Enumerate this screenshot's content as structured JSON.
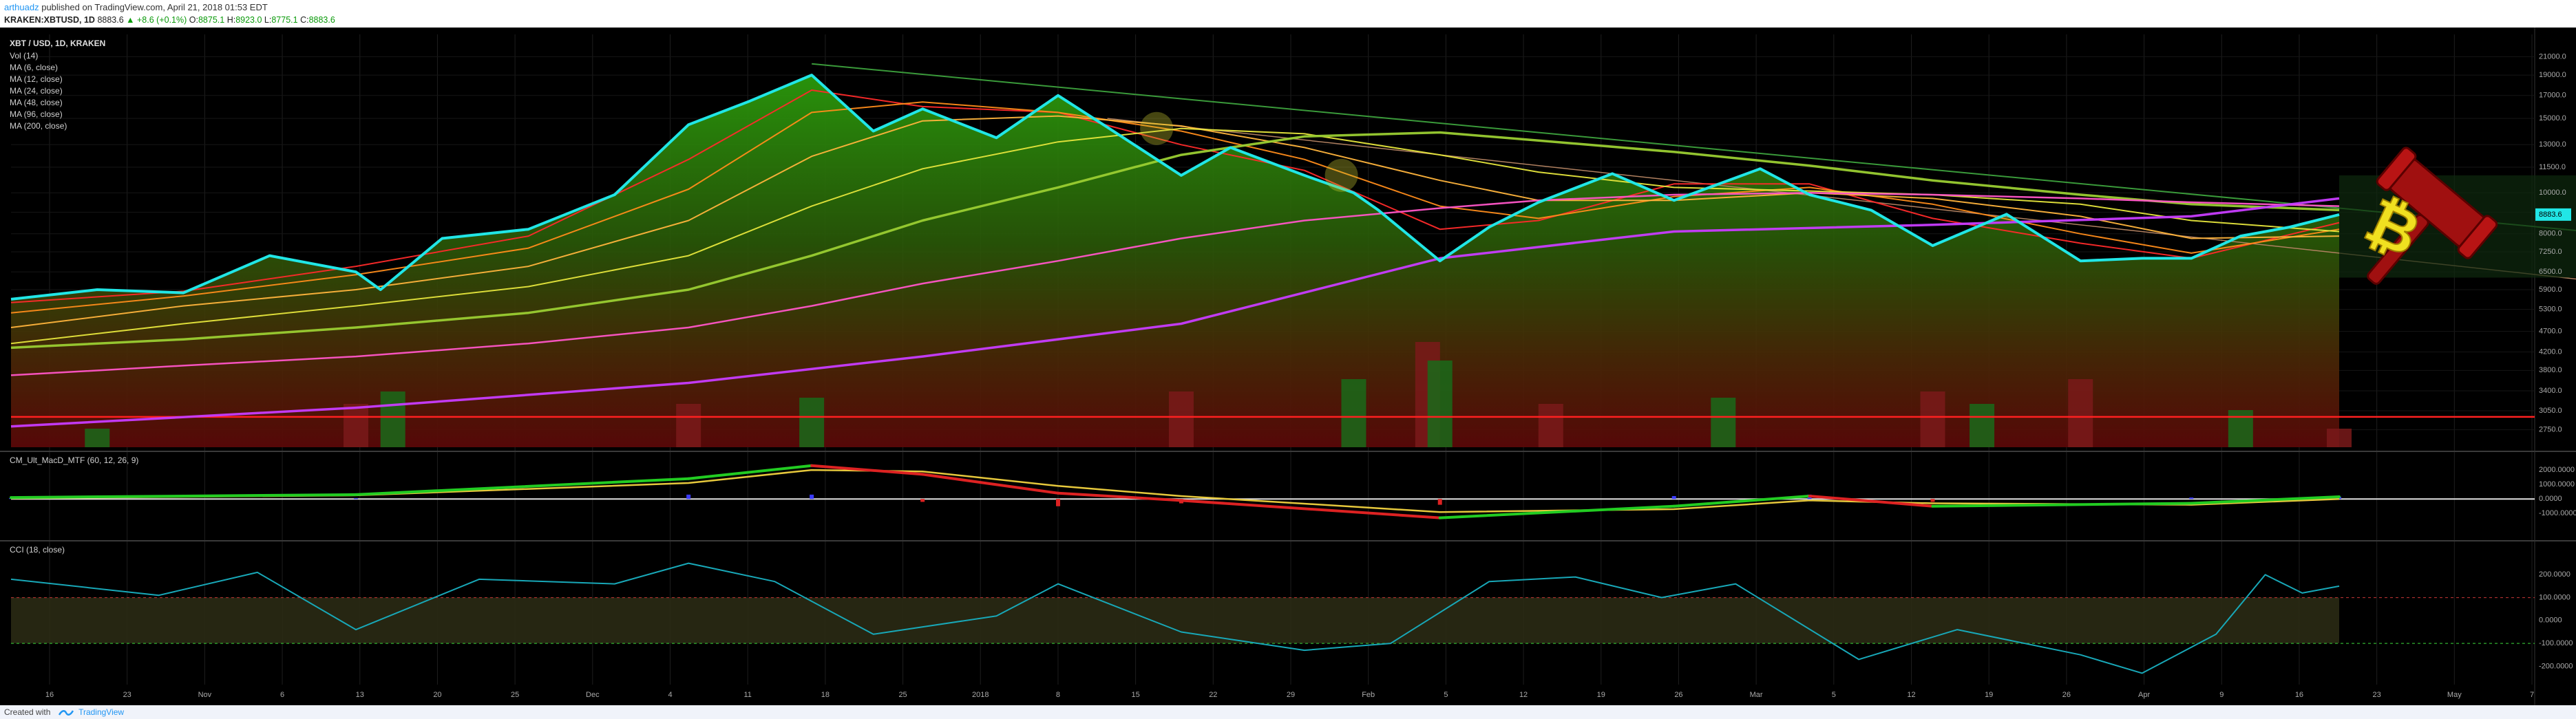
{
  "header": {
    "author": "arthuadz",
    "published_text": "published on TradingView.com, April 21, 2018 01:53 EDT",
    "symbol": "KRAKEN:XBTUSD, 1D",
    "last": "8883.6",
    "change": "▲ +8.6 (+0.1%)",
    "o_label": "O:",
    "o_value": "8875.1",
    "h_label": "H:",
    "h_value": "8923.0",
    "l_label": "L:",
    "l_value": "8775.1",
    "c_label": "C:",
    "c_value": "8883.6"
  },
  "footer": {
    "created_with": "Created with",
    "brand": "TradingView"
  },
  "colors": {
    "price_line": "#21e6e6",
    "ma6": "#ff2a2a",
    "ma12": "#ff8c1a",
    "ma24": "#ffb43c",
    "ma48": "#e6e63c",
    "ma96": "#9acd32",
    "ma200": "#ff55c8",
    "long_ma": "#c83cff",
    "hline": "#ff2020",
    "macd_up": "#22cc22",
    "macd_down": "#dd2222",
    "signal": "#e6c83c",
    "cci": "#18a8b8",
    "gavel": "#a01010",
    "bitcoin": "#f0e020",
    "price_tag_bg": "#21e6e6"
  },
  "icons": {
    "gavel": "gavel-icon",
    "bitcoin": "bitcoin-icon",
    "tradingview_logo": "tradingview-logo-icon"
  },
  "chart_data": [
    {
      "type": "line",
      "title": "XBT / USD, 1D, KRAKEN",
      "legend": [
        "Vol (14)",
        "MA (6, close)",
        "MA (12, close)",
        "MA (24, close)",
        "MA (48, close)",
        "MA (96, close)",
        "MA (200, close)"
      ],
      "legend_placement": "top-left",
      "y_scale": "log",
      "ylim": [
        2500,
        22000
      ],
      "y_ticks": [
        "21000.0",
        "19000.0",
        "17000.0",
        "15000.0",
        "13000.0",
        "11500.0",
        "10000.0",
        "9000.0",
        "8000.0",
        "7250.0",
        "6500.0",
        "5900.0",
        "5300.0",
        "4700.0",
        "4200.0",
        "3800.0",
        "3400.0",
        "3050.0",
        "2750.0"
      ],
      "last_price_label": "8883.6",
      "x_ticks": [
        "16",
        "23",
        "Nov",
        "6",
        "13",
        "20",
        "25",
        "Dec",
        "4",
        "11",
        "18",
        "25",
        "2018",
        "8",
        "15",
        "22",
        "29",
        "Feb",
        "5",
        "12",
        "19",
        "26",
        "Mar",
        "5",
        "12",
        "19",
        "26",
        "Apr",
        "9",
        "16",
        "23",
        "May",
        "7"
      ],
      "series": [
        {
          "name": "XBT / USD",
          "x": [
            "2017-10-13",
            "2017-10-20",
            "2017-10-27",
            "2017-11-03",
            "2017-11-10",
            "2017-11-12",
            "2017-11-17",
            "2017-11-24",
            "2017-12-01",
            "2017-12-07",
            "2017-12-12",
            "2017-12-17",
            "2017-12-22",
            "2017-12-26",
            "2018-01-01",
            "2018-01-06",
            "2018-01-10",
            "2018-01-16",
            "2018-01-20",
            "2018-01-26",
            "2018-01-30",
            "2018-02-01",
            "2018-02-06",
            "2018-02-10",
            "2018-02-14",
            "2018-02-20",
            "2018-02-25",
            "2018-03-04",
            "2018-03-08",
            "2018-03-13",
            "2018-03-18",
            "2018-03-24",
            "2018-03-30",
            "2018-04-04",
            "2018-04-08",
            "2018-04-12",
            "2018-04-16",
            "2018-04-20"
          ],
          "values": [
            5600,
            5900,
            5800,
            7100,
            6500,
            5900,
            7800,
            8200,
            9900,
            14500,
            16500,
            19000,
            14000,
            15800,
            13500,
            17000,
            14300,
            11000,
            12800,
            11000,
            10000,
            9100,
            6900,
            8300,
            9500,
            11100,
            9600,
            11400,
            9900,
            9100,
            7500,
            8900,
            6900,
            7000,
            7000,
            7900,
            8300,
            8883
          ]
        },
        {
          "name": "MA (6, close)",
          "x": [
            "2017-10-13",
            "2017-10-27",
            "2017-11-10",
            "2017-11-24",
            "2017-12-07",
            "2017-12-17",
            "2017-12-26",
            "2018-01-06",
            "2018-01-16",
            "2018-01-26",
            "2018-02-06",
            "2018-02-14",
            "2018-02-25",
            "2018-03-08",
            "2018-03-18",
            "2018-03-30",
            "2018-04-08",
            "2018-04-20"
          ],
          "values": [
            5500,
            5850,
            6700,
            7900,
            12000,
            17500,
            16000,
            15500,
            13000,
            11300,
            8200,
            8600,
            10500,
            10500,
            8700,
            7600,
            7000,
            8500
          ]
        },
        {
          "name": "MA (12, close)",
          "x": [
            "2017-10-13",
            "2017-10-27",
            "2017-11-10",
            "2017-11-24",
            "2017-12-07",
            "2017-12-17",
            "2017-12-26",
            "2018-01-06",
            "2018-01-16",
            "2018-01-26",
            "2018-02-06",
            "2018-02-14",
            "2018-02-25",
            "2018-03-08",
            "2018-03-18",
            "2018-03-30",
            "2018-04-08",
            "2018-04-20"
          ],
          "values": [
            5200,
            5700,
            6400,
            7400,
            10200,
            15500,
            16400,
            15500,
            14000,
            12000,
            9300,
            8700,
            9800,
            10300,
            9400,
            8000,
            7200,
            8200
          ]
        },
        {
          "name": "MA (24, close)",
          "x": [
            "2017-10-13",
            "2017-10-27",
            "2017-11-10",
            "2017-11-24",
            "2017-12-07",
            "2017-12-17",
            "2017-12-26",
            "2018-01-06",
            "2018-01-16",
            "2018-01-26",
            "2018-02-06",
            "2018-02-14",
            "2018-02-25",
            "2018-03-08",
            "2018-03-18",
            "2018-03-30",
            "2018-04-08",
            "2018-04-20"
          ],
          "values": [
            4800,
            5400,
            5900,
            6700,
            8600,
            12200,
            14800,
            15200,
            14400,
            12800,
            10700,
            9600,
            9600,
            10000,
            9700,
            8800,
            7800,
            7900
          ]
        },
        {
          "name": "MA (48, close)",
          "x": [
            "2017-10-13",
            "2017-10-27",
            "2017-11-10",
            "2017-11-24",
            "2017-12-07",
            "2017-12-17",
            "2017-12-26",
            "2018-01-06",
            "2018-01-16",
            "2018-01-26",
            "2018-02-06",
            "2018-02-14",
            "2018-02-25",
            "2018-03-08",
            "2018-03-18",
            "2018-03-30",
            "2018-04-08",
            "2018-04-20"
          ],
          "values": [
            4400,
            4900,
            5400,
            6000,
            7100,
            9300,
            11400,
            13200,
            14200,
            13800,
            12300,
            11200,
            10300,
            10100,
            9900,
            9400,
            8600,
            8100
          ]
        },
        {
          "name": "MA (96, close)",
          "x": [
            "2017-10-13",
            "2017-10-27",
            "2017-11-10",
            "2017-11-24",
            "2017-12-07",
            "2017-12-17",
            "2017-12-26",
            "2018-01-06",
            "2018-01-16",
            "2018-01-26",
            "2018-02-06",
            "2018-02-14",
            "2018-02-25",
            "2018-03-08",
            "2018-03-18",
            "2018-03-30",
            "2018-04-08",
            "2018-04-20"
          ],
          "values": [
            4300,
            4500,
            4800,
            5200,
            5900,
            7100,
            8600,
            10300,
            12300,
            13600,
            13900,
            13300,
            12500,
            11600,
            10700,
            9900,
            9400,
            9100
          ]
        },
        {
          "name": "MA (200, close)",
          "x": [
            "2017-10-13",
            "2017-10-27",
            "2017-11-10",
            "2017-11-24",
            "2017-12-07",
            "2017-12-17",
            "2017-12-26",
            "2018-01-06",
            "2018-01-16",
            "2018-01-26",
            "2018-02-06",
            "2018-02-14",
            "2018-02-25",
            "2018-03-08",
            "2018-03-18",
            "2018-03-30",
            "2018-04-08",
            "2018-04-20"
          ],
          "values": [
            3700,
            3900,
            4100,
            4400,
            4800,
            5400,
            6100,
            6900,
            7800,
            8600,
            9200,
            9600,
            9900,
            10000,
            9900,
            9700,
            9500,
            9300
          ]
        },
        {
          "x": [
            "2017-10-13",
            "2017-11-10",
            "2017-12-07",
            "2017-12-26",
            "2018-01-16",
            "2018-02-06",
            "2018-02-25",
            "2018-03-18",
            "2018-04-08",
            "2018-04-20"
          ],
          "values": [
            2800,
            3100,
            3550,
            4100,
            4900,
            7000,
            8100,
            8400,
            8800,
            9700
          ]
        }
      ],
      "hline": 2950,
      "volume": {
        "x": [
          "2017-10-20",
          "2017-11-10",
          "2017-11-13",
          "2017-12-07",
          "2017-12-17",
          "2018-01-16",
          "2018-01-30",
          "2018-02-05",
          "2018-02-06",
          "2018-02-15",
          "2018-03-01",
          "2018-03-18",
          "2018-03-22",
          "2018-03-30",
          "2018-04-12",
          "2018-04-20"
        ],
        "values": [
          0.15,
          0.35,
          0.45,
          0.35,
          0.4,
          0.45,
          0.55,
          0.85,
          0.7,
          0.35,
          0.4,
          0.45,
          0.35,
          0.55,
          0.3,
          0.15
        ]
      }
    },
    {
      "type": "line",
      "title": "CM_Ult_MacD_MTF (60, 12, 26, 9)",
      "ylim": [
        -2600,
        3000
      ],
      "y_ticks": [
        "2000.0000",
        "1000.0000",
        "0.0000",
        "-1000.0000"
      ],
      "series": [
        {
          "x": [
            "2017-10-13",
            "2017-11-10",
            "2017-12-07",
            "2017-12-17",
            "2017-12-26",
            "2018-01-06",
            "2018-01-16",
            "2018-02-06",
            "2018-02-25",
            "2018-03-08",
            "2018-03-18",
            "2018-04-08",
            "2018-04-20"
          ],
          "values": [
            100,
            300,
            1400,
            2300,
            1700,
            400,
            -100,
            -1300,
            -500,
            200,
            -500,
            -300,
            150
          ]
        },
        {
          "x": [
            "2017-10-13",
            "2017-11-10",
            "2017-12-07",
            "2017-12-17",
            "2017-12-26",
            "2018-01-06",
            "2018-01-16",
            "2018-02-06",
            "2018-02-25",
            "2018-03-08",
            "2018-03-18",
            "2018-04-08",
            "2018-04-20"
          ],
          "values": [
            50,
            250,
            1100,
            2000,
            1900,
            900,
            200,
            -900,
            -700,
            -100,
            -300,
            -400,
            0
          ]
        }
      ]
    },
    {
      "type": "line",
      "title": "CCI (18, close)",
      "ylim": [
        -280,
        330
      ],
      "y_ticks": [
        "200.0000",
        "100.0000",
        "0.0000",
        "-100.0000",
        "-200.0000"
      ],
      "series": [
        {
          "x": [
            "2017-10-13",
            "2017-10-25",
            "2017-11-02",
            "2017-11-10",
            "2017-11-20",
            "2017-12-01",
            "2017-12-07",
            "2017-12-14",
            "2017-12-22",
            "2018-01-01",
            "2018-01-06",
            "2018-01-16",
            "2018-01-26",
            "2018-02-02",
            "2018-02-10",
            "2018-02-17",
            "2018-02-24",
            "2018-03-02",
            "2018-03-12",
            "2018-03-20",
            "2018-03-30",
            "2018-04-04",
            "2018-04-10",
            "2018-04-14",
            "2018-04-17",
            "2018-04-20"
          ],
          "values": [
            180,
            110,
            210,
            -40,
            180,
            160,
            250,
            170,
            -60,
            20,
            160,
            -50,
            -130,
            -100,
            170,
            190,
            100,
            160,
            -170,
            -40,
            -150,
            -230,
            -60,
            200,
            120,
            150
          ]
        }
      ]
    }
  ]
}
